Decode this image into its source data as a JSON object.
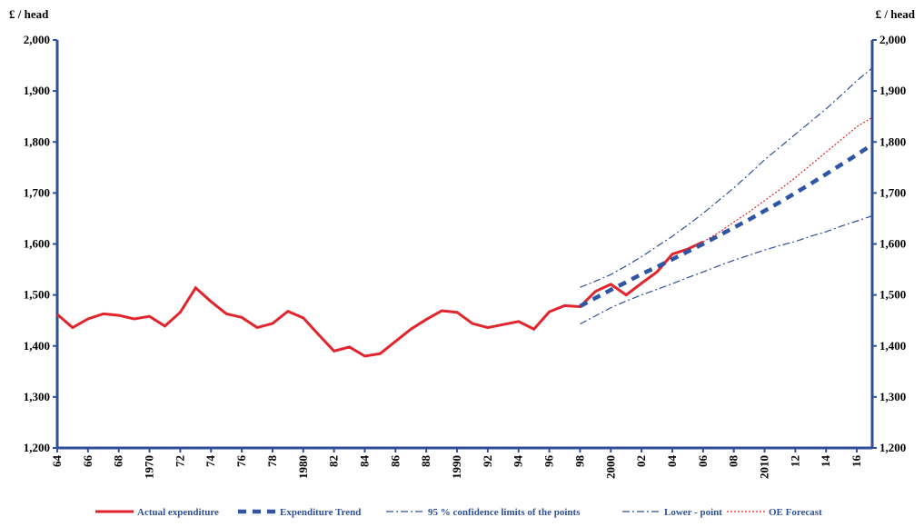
{
  "chart_data": {
    "type": "line",
    "y_label": "£ / head",
    "y2_label": "£ / head",
    "x": [
      1964,
      1965,
      1966,
      1967,
      1968,
      1969,
      1970,
      1971,
      1972,
      1973,
      1974,
      1975,
      1976,
      1977,
      1978,
      1979,
      1980,
      1981,
      1982,
      1983,
      1984,
      1985,
      1986,
      1987,
      1988,
      1989,
      1990,
      1991,
      1992,
      1993,
      1994,
      1995,
      1996,
      1997,
      1998,
      1999,
      2000,
      2001,
      2002,
      2003,
      2004,
      2005,
      2006,
      2007,
      2008,
      2009,
      2010,
      2011,
      2012,
      2013,
      2014,
      2015,
      2016,
      2017
    ],
    "xlim": [
      1964,
      2017
    ],
    "xticks": [
      {
        "value": 1964,
        "label": "64"
      },
      {
        "value": 1966,
        "label": "66"
      },
      {
        "value": 1968,
        "label": "68"
      },
      1970,
      {
        "value": 1972,
        "label": "72"
      },
      {
        "value": 1974,
        "label": "74"
      },
      {
        "value": 1976,
        "label": "76"
      },
      {
        "value": 1978,
        "label": "78"
      },
      1980,
      {
        "value": 1982,
        "label": "82"
      },
      {
        "value": 1984,
        "label": "84"
      },
      {
        "value": 1986,
        "label": "86"
      },
      {
        "value": 1988,
        "label": "88"
      },
      1990,
      {
        "value": 1992,
        "label": "92"
      },
      {
        "value": 1994,
        "label": "94"
      },
      {
        "value": 1996,
        "label": "96"
      },
      {
        "value": 1998,
        "label": "98"
      },
      2000,
      {
        "value": 2002,
        "label": "02"
      },
      {
        "value": 2004,
        "label": "04"
      },
      {
        "value": 2006,
        "label": "06"
      },
      {
        "value": 2008,
        "label": "08"
      },
      2010,
      {
        "value": 2012,
        "label": "12"
      },
      {
        "value": 2014,
        "label": "14"
      },
      {
        "value": 2016,
        "label": "16"
      }
    ],
    "ylim": [
      1200,
      2000
    ],
    "yticks": [
      {
        "value": 1200,
        "label": "1,200"
      },
      {
        "value": 1300,
        "label": "1,300"
      },
      {
        "value": 1400,
        "label": "1,400"
      },
      {
        "value": 1500,
        "label": "1,500"
      },
      {
        "value": 1600,
        "label": "1,600"
      },
      {
        "value": 1700,
        "label": "1,700"
      },
      {
        "value": 1800,
        "label": "1,800"
      },
      {
        "value": 1900,
        "label": "1,900"
      },
      {
        "value": 2000,
        "label": "2,000"
      }
    ],
    "series": [
      {
        "name": "Actual expenditure",
        "color": "#e2242c",
        "style": "solid",
        "values": [
          1462,
          1436,
          1453,
          1463,
          1460,
          1453,
          1458,
          1439,
          1466,
          1514,
          1487,
          1463,
          1456,
          1436,
          1444,
          1468,
          1455,
          1422,
          1390,
          1398,
          1380,
          1385,
          1409,
          1433,
          1452,
          1469,
          1466,
          1444,
          1436,
          1442,
          1448,
          1433,
          1467,
          1479,
          1477,
          1507,
          1521,
          1500,
          1523,
          1545,
          1580,
          1590,
          1604,
          null,
          null,
          null,
          null,
          null,
          null,
          null,
          null,
          null,
          null,
          null
        ]
      },
      {
        "name": "Expenditure Trend",
        "color": "#2f55a4",
        "style": "dash",
        "values": [
          null,
          null,
          null,
          null,
          null,
          null,
          null,
          null,
          null,
          null,
          null,
          null,
          null,
          null,
          null,
          null,
          null,
          null,
          null,
          null,
          null,
          null,
          null,
          null,
          null,
          null,
          null,
          null,
          null,
          null,
          null,
          null,
          null,
          null,
          1478,
          1494,
          1510,
          1525,
          1541,
          1555,
          1570,
          1585,
          1600,
          1616,
          1632,
          1648,
          1665,
          1682,
          1700,
          1718,
          1737,
          1756,
          1775,
          1795
        ]
      },
      {
        "name": "95 % confidence limits of the points",
        "color": "#2f4f9a",
        "style": "dashdot",
        "values": [
          null,
          null,
          null,
          null,
          null,
          null,
          null,
          null,
          null,
          null,
          null,
          null,
          null,
          null,
          null,
          null,
          null,
          null,
          null,
          null,
          null,
          null,
          null,
          null,
          null,
          null,
          null,
          null,
          null,
          null,
          null,
          null,
          null,
          null,
          1515,
          1527,
          1540,
          1557,
          1575,
          1595,
          1615,
          1637,
          1660,
          1685,
          1710,
          1737,
          1765,
          1790,
          1815,
          1840,
          1865,
          1892,
          1920,
          1945
        ]
      },
      {
        "name": "Lower - point",
        "color": "#2f4f9a",
        "style": "dashdot",
        "values": [
          null,
          null,
          null,
          null,
          null,
          null,
          null,
          null,
          null,
          null,
          null,
          null,
          null,
          null,
          null,
          null,
          null,
          null,
          null,
          null,
          null,
          null,
          null,
          null,
          null,
          null,
          null,
          null,
          null,
          null,
          null,
          null,
          null,
          null,
          1443,
          1459,
          1475,
          1488,
          1500,
          1511,
          1522,
          1534,
          1545,
          1557,
          1568,
          1578,
          1588,
          1597,
          1605,
          1615,
          1624,
          1635,
          1645,
          1655
        ]
      },
      {
        "name": "OE Forecast",
        "color": "#e2242c",
        "style": "dot",
        "values": [
          null,
          null,
          null,
          null,
          null,
          null,
          null,
          null,
          null,
          null,
          null,
          null,
          null,
          null,
          null,
          null,
          null,
          null,
          null,
          null,
          null,
          null,
          null,
          null,
          null,
          null,
          null,
          null,
          null,
          null,
          null,
          null,
          null,
          null,
          null,
          null,
          null,
          null,
          null,
          null,
          null,
          null,
          1604,
          1622,
          1643,
          1663,
          1685,
          1707,
          1730,
          1755,
          1780,
          1805,
          1830,
          1848
        ]
      }
    ]
  }
}
